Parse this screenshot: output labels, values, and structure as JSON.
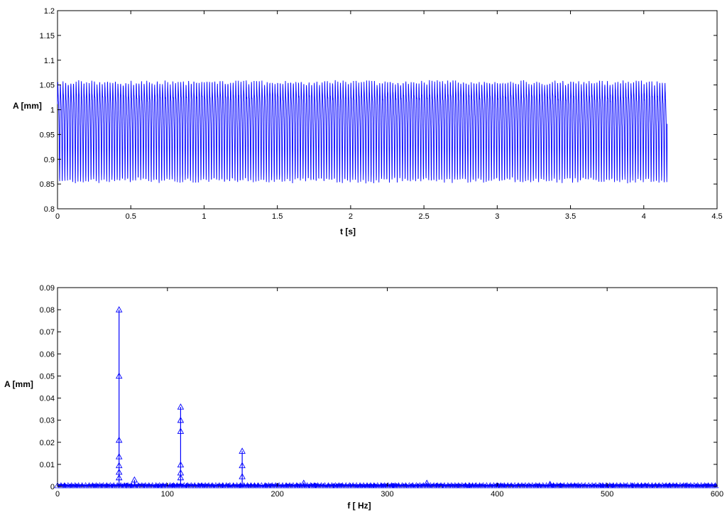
{
  "chart_data": [
    {
      "type": "line",
      "title": "",
      "xlabel": "t  [s]",
      "ylabel": "A [mm]",
      "xlim": [
        0,
        4.5
      ],
      "ylim": [
        0.8,
        1.2
      ],
      "xticks": [
        "0",
        "0.5",
        "1",
        "1.5",
        "2",
        "2.5",
        "3",
        "3.5",
        "4",
        "4.5"
      ],
      "xtick_values": [
        0,
        0.5,
        1,
        1.5,
        2,
        2.5,
        3,
        3.5,
        4,
        4.5
      ],
      "yticks": [
        "0.8",
        "0.85",
        "0.9",
        "0.95",
        "1",
        "1.05",
        "1.1",
        "1.15",
        "1.2"
      ],
      "ytick_values": [
        0.8,
        0.85,
        0.9,
        0.95,
        1,
        1.05,
        1.1,
        1.15,
        1.2
      ],
      "grid": false,
      "series": [
        {
          "color": "#0000ff",
          "signal": {
            "t_start": 0,
            "t_end": 4.16,
            "mean": 0.975,
            "min": 0.85,
            "max": 1.095,
            "dominant_frequency_hz": 56,
            "harmonic_frequency_hz": 112,
            "amplitude_fundamental": 0.08,
            "amplitude_harmonic": 0.036
          }
        }
      ]
    },
    {
      "type": "line",
      "title": "",
      "xlabel": "f [ Hz]",
      "ylabel": "A [mm]",
      "xlim": [
        0,
        600
      ],
      "ylim": [
        0,
        0.09
      ],
      "xticks": [
        "0",
        "100",
        "200",
        "300",
        "400",
        "500",
        "600"
      ],
      "xtick_values": [
        0,
        100,
        200,
        300,
        400,
        500,
        600
      ],
      "yticks": [
        "0",
        "0.01",
        "0.02",
        "0.03",
        "0.04",
        "0.05",
        "0.06",
        "0.07",
        "0.08",
        "0.09"
      ],
      "ytick_values": [
        0,
        0.01,
        0.02,
        0.03,
        0.04,
        0.05,
        0.06,
        0.07,
        0.08,
        0.09
      ],
      "grid": false,
      "marker": "triangle",
      "series": [
        {
          "color": "#0000ff",
          "peaks": [
            {
              "x": 56,
              "y": 0.08
            },
            {
              "x": 56,
              "y": 0.05
            },
            {
              "x": 56,
              "y": 0.021
            },
            {
              "x": 56,
              "y": 0.0135
            },
            {
              "x": 56,
              "y": 0.0095
            },
            {
              "x": 56,
              "y": 0.0065
            },
            {
              "x": 56,
              "y": 0.004
            },
            {
              "x": 70,
              "y": 0.003
            },
            {
              "x": 112,
              "y": 0.036
            },
            {
              "x": 112,
              "y": 0.03
            },
            {
              "x": 112,
              "y": 0.025
            },
            {
              "x": 112,
              "y": 0.0098
            },
            {
              "x": 112,
              "y": 0.0062
            },
            {
              "x": 112,
              "y": 0.004
            },
            {
              "x": 168,
              "y": 0.016
            },
            {
              "x": 168,
              "y": 0.0095
            },
            {
              "x": 168,
              "y": 0.0045
            },
            {
              "x": 224,
              "y": 0.0015
            },
            {
              "x": 336,
              "y": 0.0015
            },
            {
              "x": 448,
              "y": 0.001
            }
          ],
          "noise_floor": 0.0006
        }
      ]
    }
  ]
}
